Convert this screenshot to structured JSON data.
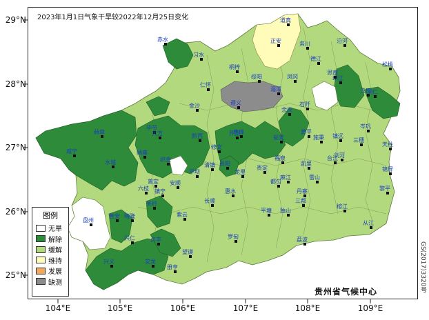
{
  "title": "2023年1月1日气象干旱较2022年12月25日变化",
  "credit": "贵州省气候中心",
  "map_code": "GS(2017)3320号",
  "axes": {
    "lat_labels": [
      "29°N",
      "28°N",
      "27°N",
      "26°N",
      "25°N"
    ],
    "lon_labels": [
      "104°E",
      "105°E",
      "106°E",
      "107°E",
      "108°E",
      "109°E"
    ]
  },
  "legend": {
    "title": "图例",
    "items": [
      {
        "label": "无旱",
        "color": "#ffffff"
      },
      {
        "label": "解除",
        "color": "#2e8b3a"
      },
      {
        "label": "缓解",
        "color": "#b2d97e"
      },
      {
        "label": "维持",
        "color": "#fffbb8"
      },
      {
        "label": "发展",
        "color": "#f6a85a"
      },
      {
        "label": "缺测",
        "color": "#8c8c8c"
      }
    ]
  },
  "colors": {
    "relief": "#b2d97e",
    "lifted": "#2e8b3a",
    "maintained": "#fffbb8",
    "missing": "#8c8c8c",
    "none": "#ffffff",
    "station_label": "#1a3fbf"
  },
  "stations": [
    "道真",
    "正安",
    "务川",
    "沿河",
    "赤水",
    "习水",
    "桐梓",
    "绥阳",
    "湄潭",
    "凤冈",
    "德江",
    "印江",
    "松桃",
    "仁怀",
    "遵义",
    "余庆",
    "思南",
    "石阡",
    "江口",
    "铜仁",
    "金沙",
    "黔西",
    "毕节",
    "大方",
    "威宁",
    "赫章",
    "纳雍",
    "织金",
    "修文",
    "息烽",
    "开阳",
    "瓮安",
    "黄平",
    "施秉",
    "镇远",
    "岑巩",
    "三穗",
    "天柱",
    "锦屏",
    "黎平",
    "从江",
    "榕江",
    "雷山",
    "台江",
    "剑河",
    "丹寨",
    "三都",
    "荔波",
    "独山",
    "平塘",
    "罗甸",
    "望谟",
    "册亨",
    "安龙",
    "兴义",
    "兴仁",
    "贞丰",
    "普安",
    "晴隆",
    "关岭",
    "镇宁",
    "紫云",
    "长顺",
    "惠水",
    "贵阳",
    "清镇",
    "平坝",
    "安顺",
    "普定",
    "六枝",
    "水城",
    "盘州",
    "龙里",
    "贵定",
    "都匀",
    "麻江",
    "凯里",
    "福泉"
  ]
}
